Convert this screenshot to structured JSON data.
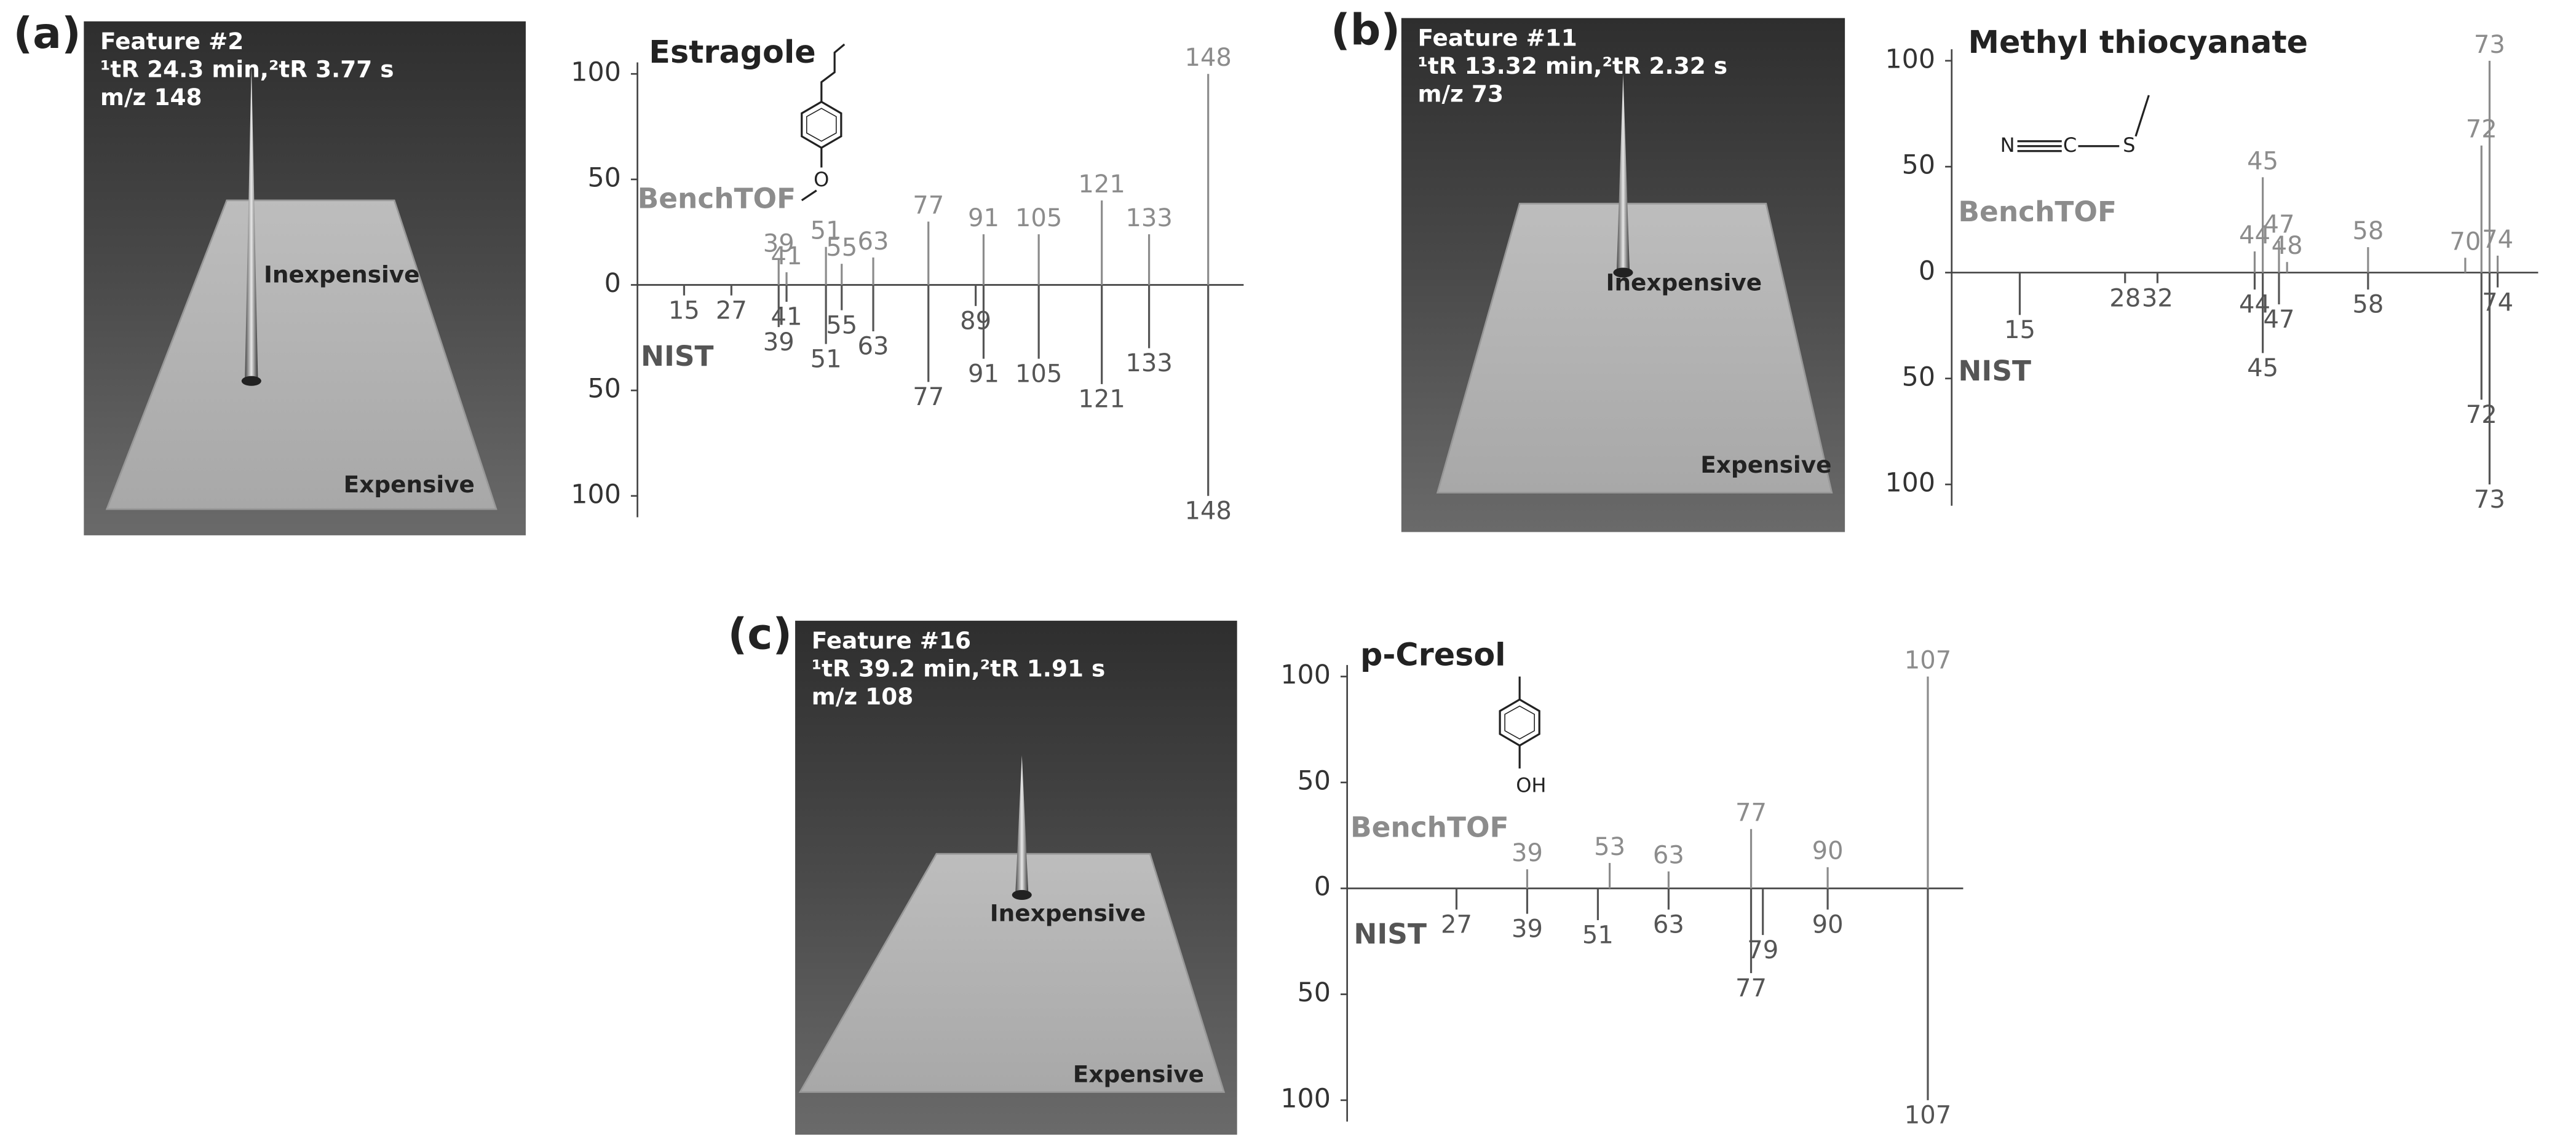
{
  "chart_data": [
    {
      "type": "mirror-spectrum",
      "panel": "(a)",
      "title": "Estragole",
      "structure_atoms": [
        "O"
      ],
      "surface": {
        "feature": "Feature #2",
        "retention": "¹tR 24.3 min,²tR 3.77 s",
        "mz": "m/z 148",
        "upper_label": "Inexpensive",
        "lower_label": "Expensive"
      },
      "xlim": [
        4,
        157
      ],
      "ylim": [
        -100,
        100
      ],
      "yticks": [
        {
          "value": -100,
          "label": "100"
        },
        {
          "value": -50,
          "label": "50"
        },
        0,
        50,
        100
      ],
      "series": [
        {
          "name": "BenchTOF",
          "color": "#8c8c8c",
          "x": [
            39,
            41,
            51,
            55,
            63,
            77,
            91,
            105,
            121,
            133,
            148
          ],
          "values": [
            12,
            6,
            18,
            10,
            13,
            30,
            24,
            24,
            40,
            24,
            100
          ]
        },
        {
          "name": "NIST",
          "color": "#555555",
          "x": [
            15,
            27,
            39,
            41,
            51,
            55,
            63,
            77,
            89,
            91,
            105,
            121,
            133,
            148
          ],
          "values": [
            -5,
            -5,
            -20,
            -8,
            -28,
            -12,
            -22,
            -46,
            -10,
            -35,
            -35,
            -47,
            -30,
            -100
          ]
        }
      ]
    },
    {
      "type": "mirror-spectrum",
      "panel": "(b)",
      "title": "Methyl thiocyanate",
      "structure_atoms": [
        "N",
        "C",
        "S"
      ],
      "surface": {
        "feature": "Feature #11",
        "retention": "¹tR 13.32 min,²tR 2.32 s",
        "mz": "m/z 73",
        "upper_label": "Inexpensive",
        "lower_label": "Expensive"
      },
      "xlim": [
        7,
        79
      ],
      "ylim": [
        -100,
        100
      ],
      "yticks": [
        {
          "value": -100,
          "label": "100"
        },
        {
          "value": -50,
          "label": "50"
        },
        0,
        50,
        100
      ],
      "series": [
        {
          "name": "BenchTOF",
          "color": "#8c8c8c",
          "x": [
            44,
            45,
            47,
            48,
            58,
            70,
            72,
            73,
            74
          ],
          "values": [
            10,
            45,
            15,
            5,
            12,
            7,
            60,
            100,
            8
          ]
        },
        {
          "name": "NIST",
          "color": "#555555",
          "x": [
            15,
            28,
            32,
            44,
            45,
            47,
            58,
            72,
            73,
            74
          ],
          "values": [
            -20,
            -5,
            -5,
            -8,
            -38,
            -15,
            -8,
            -60,
            -100,
            -7
          ]
        }
      ]
    },
    {
      "type": "mirror-spectrum",
      "panel": "(c)",
      "title": "p-Cresol",
      "structure_atoms": [
        "OH"
      ],
      "surface": {
        "feature": "Feature #16",
        "retention": "¹tR 39.2 min,²tR 1.91 s",
        "mz": "m/z 108",
        "upper_label": "Inexpensive",
        "lower_label": "Expensive"
      },
      "xlim": [
        9,
        113
      ],
      "ylim": [
        -100,
        100
      ],
      "yticks": [
        {
          "value": -100,
          "label": "100"
        },
        {
          "value": -50,
          "label": "50"
        },
        0,
        50,
        100
      ],
      "series": [
        {
          "name": "BenchTOF",
          "color": "#8c8c8c",
          "x": [
            39,
            53,
            63,
            77,
            90,
            107
          ],
          "values": [
            9,
            12,
            8,
            28,
            10,
            100
          ]
        },
        {
          "name": "NIST",
          "color": "#555555",
          "x": [
            27,
            39,
            51,
            63,
            77,
            79,
            90,
            107
          ],
          "values": [
            -10,
            -12,
            -15,
            -10,
            -40,
            -22,
            -10,
            -100
          ]
        }
      ]
    }
  ]
}
